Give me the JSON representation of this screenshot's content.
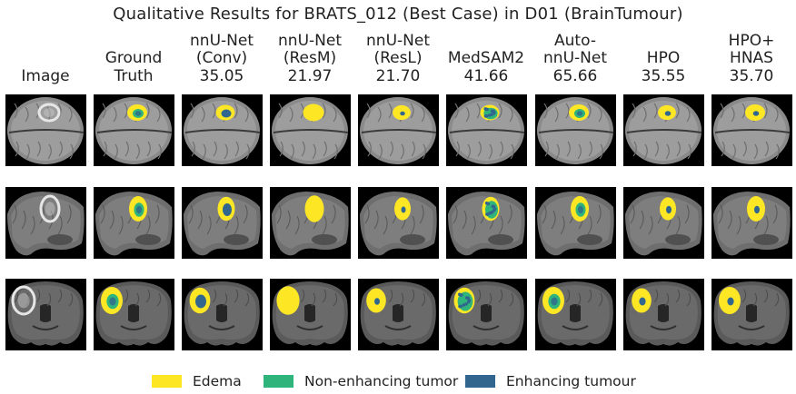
{
  "title": "Qualitative Results for BRATS_012 (Best Case) in D01 (BrainTumour)",
  "columns": [
    {
      "lines": [
        "Image"
      ]
    },
    {
      "lines": [
        "Ground",
        "Truth"
      ]
    },
    {
      "lines": [
        "nnU-Net",
        "(Conv)",
        "35.05"
      ]
    },
    {
      "lines": [
        "nnU-Net",
        "(ResM)",
        "21.97"
      ]
    },
    {
      "lines": [
        "nnU-Net",
        "(ResL)",
        "21.70"
      ]
    },
    {
      "lines": [
        "MedSAM2",
        "41.66"
      ]
    },
    {
      "lines": [
        "Auto-",
        "nnU-Net",
        "65.66"
      ]
    },
    {
      "lines": [
        "HPO",
        "35.55"
      ]
    },
    {
      "lines": [
        "HPO+",
        "HNAS",
        "35.70"
      ]
    }
  ],
  "legend": [
    {
      "label": "Edema",
      "color": "#fde725"
    },
    {
      "label": "Non-enhancing tumor",
      "color": "#2fb47c"
    },
    {
      "label": "Enhancing tumour",
      "color": "#31668e"
    }
  ]
}
